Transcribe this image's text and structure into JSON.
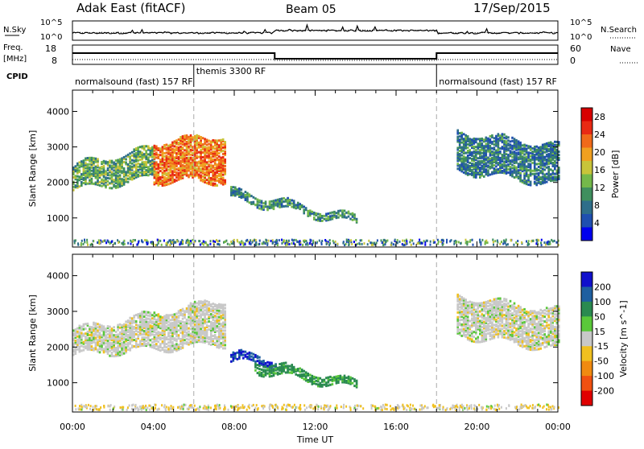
{
  "header": {
    "title_left": "Adak East (fitACF)",
    "title_center": "Beam 05",
    "title_right": "17/Sep/2015"
  },
  "top_panels": {
    "nsky_label": "N.Sky",
    "nsky_ticks": [
      "10^5",
      "10^0"
    ],
    "nsearch_label": "N.Search",
    "nsearch_ticks": [
      "10^5",
      "10^0"
    ],
    "freq_label_line1": "Freq.",
    "freq_label_line2": "[MHz]",
    "freq_ticks": [
      "18",
      "8"
    ],
    "nave_label": "Nave",
    "nave_ticks": [
      "60",
      "0"
    ],
    "cpid_label": "CPID",
    "cpid_segments": [
      {
        "label": "normalsound (fast) 157 RF",
        "start_h": 0,
        "end_h": 6
      },
      {
        "label": "themis 3300 RF",
        "start_h": 6,
        "end_h": 18
      },
      {
        "label": "normalsound (fast) 157 RF",
        "start_h": 18,
        "end_h": 24
      }
    ]
  },
  "chart_data": [
    {
      "type": "heatmap",
      "title": "",
      "xlabel": "Time UT",
      "ylabel": "Slant Range [km]",
      "x_ticks": [
        "00:00",
        "04:00",
        "08:00",
        "12:00",
        "16:00",
        "20:00",
        "00:00"
      ],
      "xlim_hours": [
        0,
        24
      ],
      "ylim_km": [
        180,
        4600
      ],
      "y_ticks": [
        1000,
        2000,
        3000,
        4000
      ],
      "colorbar": {
        "label": "Power [dB]",
        "ticks": [
          4,
          8,
          12,
          16,
          20,
          24,
          28
        ],
        "range": [
          0,
          30
        ],
        "colors": [
          "#0000ee",
          "#1f4fb0",
          "#2e6e8a",
          "#3f8f5e",
          "#74b84a",
          "#c8c43a",
          "#f0a020",
          "#f06a1a",
          "#e82a14",
          "#d80000"
        ]
      },
      "echo_regions": [
        {
          "t_start": 0.0,
          "t_end": 4.0,
          "range_low": [
            1750,
            2100
          ],
          "range_high": [
            2450,
            2950
          ],
          "power": 12
        },
        {
          "t_start": 4.0,
          "t_end": 7.5,
          "range_low": [
            2000,
            2000
          ],
          "range_high": [
            3100,
            3300
          ],
          "power": 22
        },
        {
          "t_start": 7.8,
          "t_end": 14.0,
          "range_low": [
            1500,
            800
          ],
          "range_high": [
            1750,
            1000
          ],
          "power": 10
        },
        {
          "t_start": 19.0,
          "t_end": 24.0,
          "range_low": [
            2300,
            1900
          ],
          "range_high": [
            3400,
            3000
          ],
          "power": 8
        }
      ],
      "ground_scatter_band_km": [
        200,
        350
      ]
    },
    {
      "type": "heatmap",
      "title": "",
      "xlabel": "Time UT",
      "ylabel": "Slant Range [km]",
      "x_ticks": [
        "00:00",
        "04:00",
        "08:00",
        "12:00",
        "16:00",
        "20:00",
        "00:00"
      ],
      "xlim_hours": [
        0,
        24
      ],
      "ylim_km": [
        180,
        4600
      ],
      "y_ticks": [
        1000,
        2000,
        3000,
        4000
      ],
      "colorbar": {
        "label": "Velocity [m s^-1]",
        "ticks": [
          "200",
          "100",
          "50",
          "15",
          "-15",
          "-50",
          "-100",
          "-200"
        ],
        "colors": [
          "#1010cc",
          "#1e5fa0",
          "#2a8a50",
          "#5ac83a",
          "#c8c8c8",
          "#f0c020",
          "#f08a10",
          "#f05010",
          "#e00000"
        ]
      },
      "echo_regions": [
        {
          "t_start": 0.0,
          "t_end": 7.5,
          "range_low": [
            1750,
            2050
          ],
          "range_high": [
            2450,
            3300
          ],
          "velocity": 0,
          "class": "ground_scatter"
        },
        {
          "t_start": 7.8,
          "t_end": 10.0,
          "range_low": [
            1550,
            1500
          ],
          "range_high": [
            1800,
            1650
          ],
          "velocity": 150
        },
        {
          "t_start": 9.0,
          "t_end": 14.0,
          "range_low": [
            1300,
            800
          ],
          "range_high": [
            1600,
            1000
          ],
          "velocity": 40
        },
        {
          "t_start": 19.0,
          "t_end": 24.0,
          "range_low": [
            2300,
            1900
          ],
          "range_high": [
            3400,
            3000
          ],
          "velocity": 0,
          "class": "ground_scatter"
        }
      ],
      "ground_scatter_band_km": [
        200,
        350
      ]
    }
  ],
  "colors": {
    "axis": "#000000",
    "background": "#ffffff",
    "separator_dash": "#aaaaaa"
  }
}
